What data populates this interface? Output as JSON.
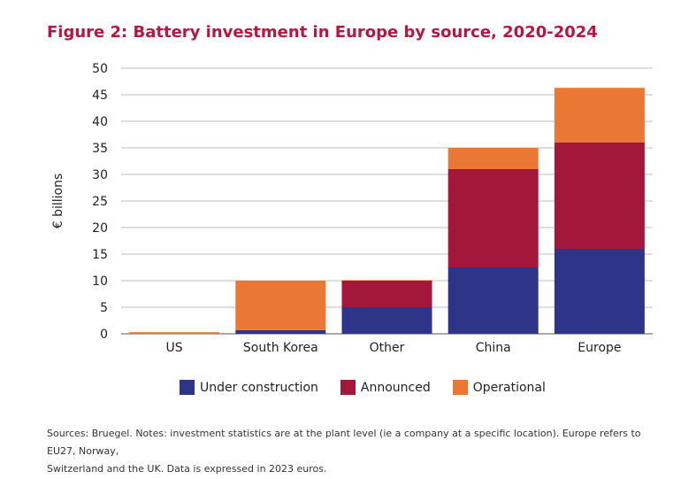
{
  "chart_data": {
    "type": "bar",
    "stacked": true,
    "title": "Figure 2: Battery investment in Europe by source, 2020-2024",
    "ylabel": "€ billions",
    "xlabel": "",
    "ylim": [
      0,
      50
    ],
    "yticks": [
      0,
      5,
      10,
      15,
      20,
      25,
      30,
      35,
      40,
      45,
      50
    ],
    "grid": true,
    "legend_position": "bottom",
    "categories": [
      "US",
      "South Korea",
      "Other",
      "China",
      "Europe"
    ],
    "series": [
      {
        "name": "Under construction",
        "color": "#2e3589",
        "values": [
          0,
          0.7,
          5,
          12.5,
          16
        ]
      },
      {
        "name": "Announced",
        "color": "#a3173a",
        "values": [
          0,
          0,
          5,
          18.5,
          20
        ]
      },
      {
        "name": "Operational",
        "color": "#ea7733",
        "values": [
          0.3,
          9.3,
          0.1,
          4,
          10.3
        ]
      }
    ]
  },
  "notes": {
    "line1": "Sources: Bruegel. Notes: investment statistics are at the plant level (ie a company at a specific location). Europe refers to EU27, Norway,",
    "line2": "Switzerland and the UK. Data is expressed in 2023 euros."
  }
}
